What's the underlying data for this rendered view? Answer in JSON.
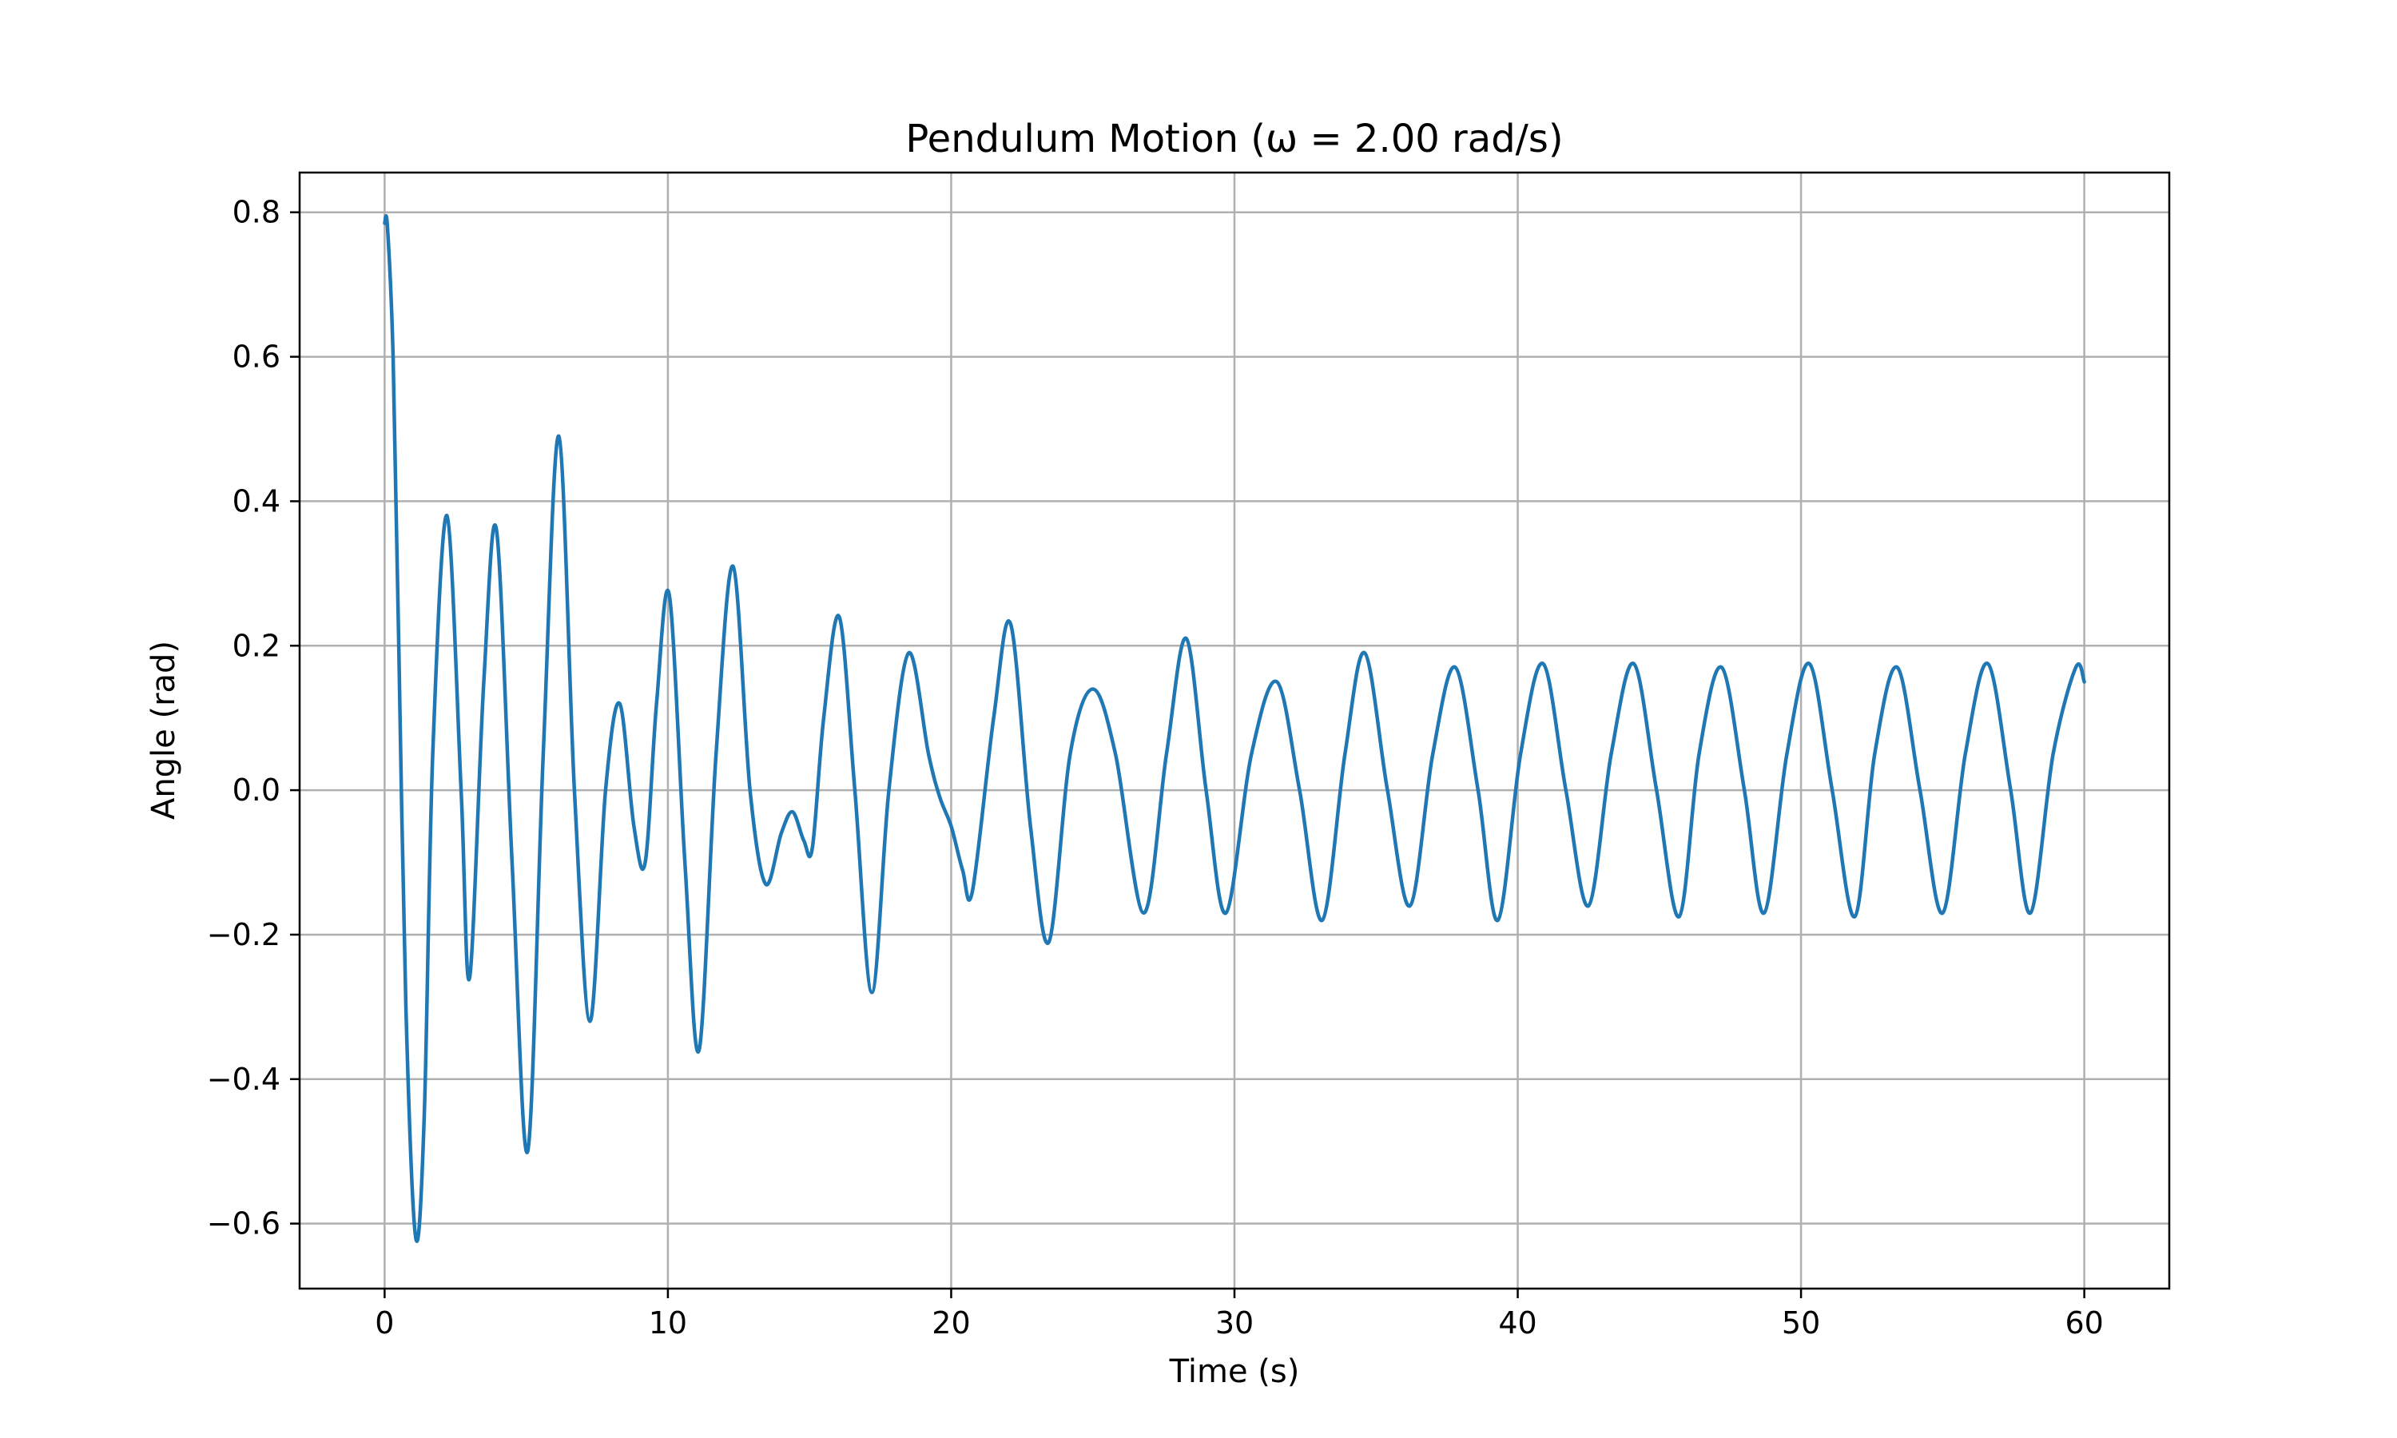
{
  "chart_data": {
    "type": "line",
    "title": "Pendulum Motion (ω = 2.00 rad/s)",
    "xlabel": "Time (s)",
    "ylabel": "Angle (rad)",
    "xlim": [
      -3,
      63
    ],
    "ylim": [
      -0.69,
      0.855
    ],
    "grid": true,
    "line_color": "#1f77b4",
    "x_ticks": [
      {
        "value": 0,
        "label": "0"
      },
      {
        "value": 10,
        "label": "10"
      },
      {
        "value": 20,
        "label": "20"
      },
      {
        "value": 30,
        "label": "30"
      },
      {
        "value": 40,
        "label": "40"
      },
      {
        "value": 50,
        "label": "50"
      },
      {
        "value": 60,
        "label": "60"
      }
    ],
    "y_ticks": [
      {
        "value": -0.6,
        "label": "−0.6"
      },
      {
        "value": -0.4,
        "label": "−0.4"
      },
      {
        "value": -0.2,
        "label": "−0.2"
      },
      {
        "value": 0.0,
        "label": "0.0"
      },
      {
        "value": 0.2,
        "label": "0.2"
      },
      {
        "value": 0.4,
        "label": "0.4"
      },
      {
        "value": 0.6,
        "label": "0.6"
      },
      {
        "value": 0.8,
        "label": "0.8"
      }
    ],
    "series": [
      {
        "points": [
          [
            0,
            0.785
          ],
          [
            0.1,
            0.78
          ],
          [
            0.3,
            0.6
          ],
          [
            0.5,
            0.2
          ],
          [
            0.75,
            -0.3
          ],
          [
            1.1,
            -0.62
          ],
          [
            1.4,
            -0.45
          ],
          [
            1.7,
            0.05
          ],
          [
            2.2,
            0.38
          ],
          [
            2.7,
            0.0
          ],
          [
            3.0,
            -0.26
          ],
          [
            3.5,
            0.15
          ],
          [
            3.95,
            0.36
          ],
          [
            4.5,
            -0.1
          ],
          [
            5.05,
            -0.5
          ],
          [
            5.6,
            0.05
          ],
          [
            6.15,
            0.49
          ],
          [
            6.7,
            0.0
          ],
          [
            7.25,
            -0.32
          ],
          [
            7.8,
            0.0
          ],
          [
            8.3,
            0.12
          ],
          [
            8.8,
            -0.05
          ],
          [
            9.2,
            -0.1
          ],
          [
            9.6,
            0.12
          ],
          [
            10.05,
            0.27
          ],
          [
            10.6,
            -0.1
          ],
          [
            11.1,
            -0.36
          ],
          [
            11.7,
            0.05
          ],
          [
            12.3,
            0.31
          ],
          [
            12.9,
            0.0
          ],
          [
            13.45,
            -0.13
          ],
          [
            14.0,
            -0.06
          ],
          [
            14.4,
            -0.03
          ],
          [
            14.8,
            -0.07
          ],
          [
            15.1,
            -0.08
          ],
          [
            15.5,
            0.1
          ],
          [
            16.05,
            0.24
          ],
          [
            16.6,
            0.0
          ],
          [
            17.2,
            -0.28
          ],
          [
            17.8,
            0.0
          ],
          [
            18.5,
            0.19
          ],
          [
            19.2,
            0.05
          ],
          [
            19.6,
            -0.01
          ],
          [
            20.0,
            -0.05
          ],
          [
            20.4,
            -0.11
          ],
          [
            20.75,
            -0.14
          ],
          [
            21.5,
            0.1
          ],
          [
            22.1,
            0.23
          ],
          [
            22.8,
            -0.05
          ],
          [
            23.45,
            -0.21
          ],
          [
            24.2,
            0.05
          ],
          [
            25.0,
            0.14
          ],
          [
            25.8,
            0.05
          ],
          [
            26.8,
            -0.17
          ],
          [
            27.6,
            0.05
          ],
          [
            28.3,
            0.21
          ],
          [
            29.0,
            0.0
          ],
          [
            29.7,
            -0.17
          ],
          [
            30.6,
            0.05
          ],
          [
            31.5,
            0.15
          ],
          [
            32.3,
            0.0
          ],
          [
            33.1,
            -0.18
          ],
          [
            33.9,
            0.05
          ],
          [
            34.6,
            0.19
          ],
          [
            35.4,
            0.0
          ],
          [
            36.2,
            -0.16
          ],
          [
            37.0,
            0.05
          ],
          [
            37.8,
            0.17
          ],
          [
            38.6,
            0.0
          ],
          [
            39.3,
            -0.18
          ],
          [
            40.1,
            0.05
          ],
          [
            40.9,
            0.175
          ],
          [
            41.7,
            0.0
          ],
          [
            42.5,
            -0.16
          ],
          [
            43.3,
            0.05
          ],
          [
            44.1,
            0.175
          ],
          [
            44.9,
            0.0
          ],
          [
            45.7,
            -0.175
          ],
          [
            46.4,
            0.05
          ],
          [
            47.2,
            0.17
          ],
          [
            48.0,
            0.0
          ],
          [
            48.7,
            -0.17
          ],
          [
            49.5,
            0.05
          ],
          [
            50.3,
            0.175
          ],
          [
            51.1,
            0.0
          ],
          [
            51.9,
            -0.175
          ],
          [
            52.6,
            0.05
          ],
          [
            53.4,
            0.17
          ],
          [
            54.2,
            0.0
          ],
          [
            55.0,
            -0.17
          ],
          [
            55.8,
            0.05
          ],
          [
            56.6,
            0.175
          ],
          [
            57.4,
            0.0
          ],
          [
            58.1,
            -0.17
          ],
          [
            58.9,
            0.05
          ],
          [
            59.7,
            0.17
          ],
          [
            60.0,
            0.15
          ]
        ]
      }
    ]
  }
}
